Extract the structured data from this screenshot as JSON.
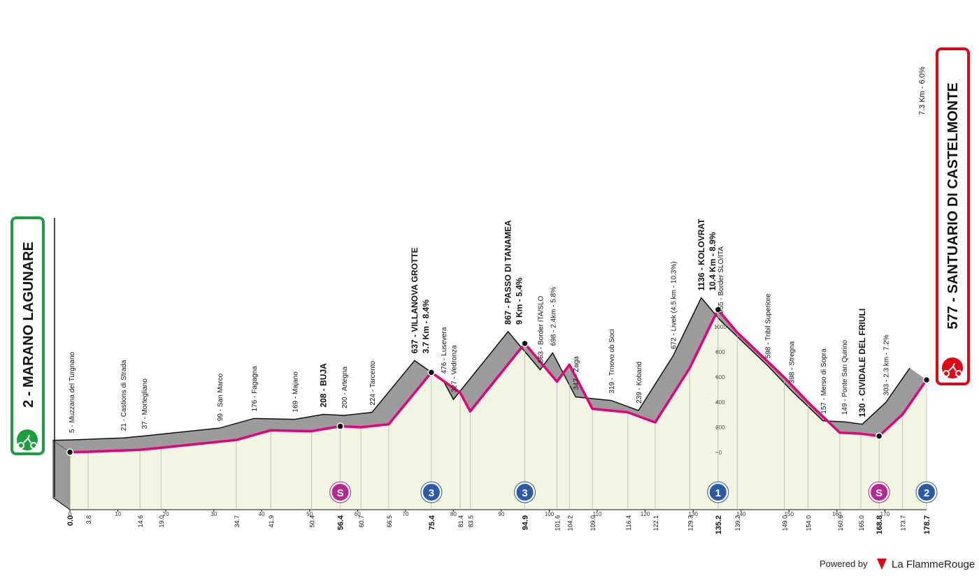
{
  "chart_data": {
    "type": "area",
    "start_label": "2 - MARANO LAGUNARE",
    "finish_label": "577 - SANTUARIO DI CASTELMONTE",
    "finish_climb": "7.3 Km - 6.0%",
    "x": [
      {
        "value": 0,
        "label": "0.0"
      },
      3.8,
      14.6,
      {
        "value": 19,
        "label": "19.0"
      },
      34.7,
      41.9,
      50.4,
      56.4,
      60.7,
      66.5,
      75.4,
      81.4,
      83.5,
      94.9,
      101.6,
      104.2,
      {
        "value": 109,
        "label": "109.0"
      },
      116.4,
      122.1,
      129.3,
      135.2,
      139.2,
      {
        "value": 149,
        "label": "149.0"
      },
      {
        "value": 154,
        "label": "154.0"
      },
      160.6,
      {
        "value": 165,
        "label": "165.0"
      },
      168.8,
      173.7,
      178.7
    ],
    "values": [
      2,
      5,
      21,
      37,
      99,
      176,
      169,
      208,
      200,
      224,
      637,
      476,
      327,
      867,
      563,
      698,
      347,
      319,
      239,
      672,
      1136,
      955,
      598,
      398,
      157,
      149,
      130,
      303,
      577
    ],
    "labels": [
      null,
      "5 - Muzzana del Turgnano",
      "21 - Castions di Strada",
      "37 - Mortegliano",
      "99 - San Marco",
      "176 - Fagagna",
      "169 - Majano",
      "208 - BUJA",
      "200 - Artegna",
      "224 - Tarcento",
      "637 - VILLANOVA GROTTE",
      "476 - Lusevera",
      "327 - Vedronza",
      "867 - PASSO DI TANAMEA",
      "563 - Border ITA/SLO",
      "698 - 2.4km - 5.8%",
      "347 - Zaga",
      "319 - Trnovo ob Soci",
      "239 - Kobarid",
      "672 - Livek (4.5 km - 10.3%)",
      "1136 - KOLOVRAT",
      "955 - Border SLO/ITA",
      "598 - Tribil Superiore",
      "398 - Stregna",
      "157 - Merso di Sopra",
      "149 - Ponte San Quirino",
      "130 - CIVIDALE DEL FRIULI",
      "303 - 2.3 km - 7.2%",
      null
    ],
    "notes": [
      null,
      null,
      null,
      null,
      null,
      null,
      null,
      null,
      null,
      null,
      "3.7 Km - 8.4%",
      null,
      null,
      "9 Km - 5.4%",
      null,
      null,
      null,
      null,
      null,
      null,
      "10.4 Km - 8.9%",
      null,
      null,
      null,
      null,
      null,
      null,
      null,
      null
    ],
    "markers": [
      null,
      null,
      null,
      null,
      null,
      null,
      null,
      {
        "label": "S",
        "color": "#b5288f"
      },
      null,
      null,
      {
        "label": "3",
        "color": "#2b5aa6"
      },
      null,
      null,
      {
        "label": "3",
        "color": "#2b5aa6"
      },
      null,
      null,
      null,
      null,
      null,
      null,
      {
        "label": "1",
        "color": "#2b5aa6"
      },
      null,
      null,
      null,
      null,
      null,
      {
        "label": "S",
        "color": "#b5288f"
      },
      null,
      {
        "label": "2",
        "color": "#2b5aa6"
      }
    ],
    "xlim": [
      0,
      178.7
    ],
    "xticks": [
      0,
      10,
      20,
      30,
      40,
      50,
      60,
      70,
      80,
      90,
      100,
      110,
      120,
      130,
      140,
      150,
      160,
      170
    ],
    "ylim": [
      0,
      1000
    ],
    "yticks": [
      0,
      200,
      400,
      600,
      800,
      1000
    ],
    "line_color": "#e5007e",
    "band_color": "#9b9b9b",
    "fill_color": "#f3f5e3",
    "footer": {
      "powered": "Powered by",
      "brand": "La FlammeRouge"
    }
  }
}
